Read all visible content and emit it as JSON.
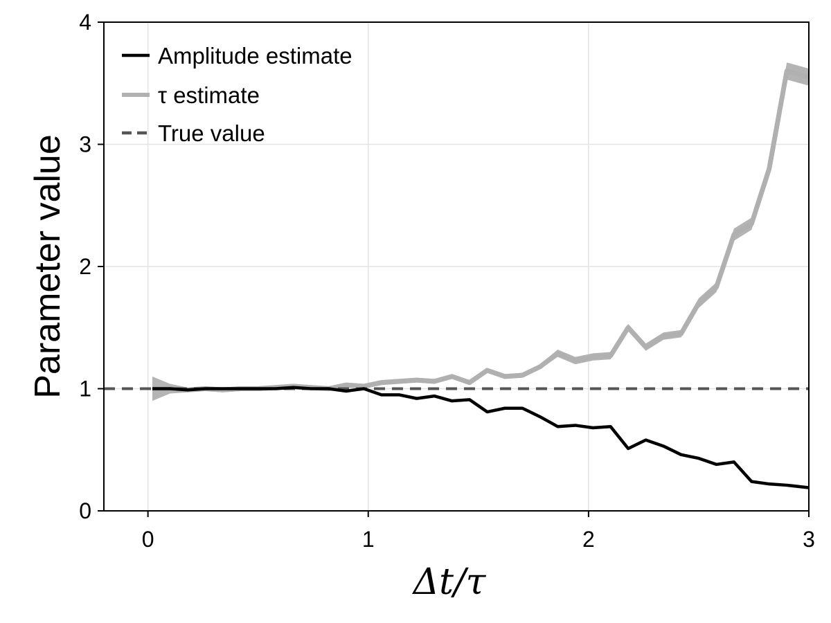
{
  "chart_data": {
    "type": "line",
    "title": "",
    "xlabel": "Δt/τ",
    "ylabel": "Parameter value",
    "xlim": [
      -0.2,
      3.0
    ],
    "ylim": [
      0,
      4
    ],
    "xticks": [
      0,
      1,
      2,
      3
    ],
    "yticks": [
      0,
      1,
      2,
      3,
      4
    ],
    "x_tick_labels": [
      "0",
      "1",
      "2",
      "3"
    ],
    "y_tick_labels": [
      "0",
      "1",
      "2",
      "3",
      "4"
    ],
    "grid": true,
    "legend_position": "top-left",
    "legend": [
      {
        "label": "Amplitude estimate",
        "style": "solid",
        "color": "#000000"
      },
      {
        "label": "τ estimate",
        "style": "solid",
        "color": "#b0b0b0"
      },
      {
        "label": "True value",
        "style": "dashed",
        "color": "#555555"
      }
    ],
    "x": [
      0.02,
      0.1,
      0.18,
      0.26,
      0.34,
      0.42,
      0.5,
      0.58,
      0.66,
      0.74,
      0.82,
      0.9,
      0.98,
      1.06,
      1.14,
      1.22,
      1.3,
      1.38,
      1.46,
      1.54,
      1.62,
      1.7,
      1.78,
      1.86,
      1.94,
      2.02,
      2.1,
      2.18,
      2.26,
      2.34,
      2.42,
      2.5,
      2.58,
      2.66,
      2.74,
      2.82,
      2.9,
      3.0
    ],
    "series": [
      {
        "name": "Amplitude estimate",
        "color": "#000000",
        "values": [
          1.0,
          1.0,
          0.99,
          1.0,
          1.0,
          1.0,
          1.0,
          1.0,
          1.01,
          1.0,
          1.0,
          0.98,
          1.0,
          0.95,
          0.95,
          0.92,
          0.94,
          0.9,
          0.91,
          0.81,
          0.84,
          0.84,
          0.77,
          0.69,
          0.7,
          0.68,
          0.69,
          0.51,
          0.58,
          0.53,
          0.46,
          0.43,
          0.38,
          0.4,
          0.24,
          0.22,
          0.21,
          0.19
        ]
      },
      {
        "name": "τ estimate",
        "color": "#b0b0b0",
        "values": [
          1.0,
          1.0,
          0.99,
          1.0,
          0.99,
          1.0,
          1.0,
          1.01,
          1.02,
          1.01,
          1.0,
          1.03,
          1.02,
          1.05,
          1.06,
          1.07,
          1.06,
          1.1,
          1.05,
          1.15,
          1.1,
          1.11,
          1.18,
          1.29,
          1.23,
          1.26,
          1.27,
          1.5,
          1.34,
          1.43,
          1.45,
          1.7,
          1.83,
          2.26,
          2.35,
          2.8,
          3.6,
          3.55
        ],
        "band_halfwidth": [
          0.1,
          0.04,
          0.02,
          0.02,
          0.02,
          0.02,
          0.02,
          0.02,
          0.02,
          0.02,
          0.02,
          0.02,
          0.02,
          0.02,
          0.02,
          0.02,
          0.02,
          0.02,
          0.02,
          0.02,
          0.02,
          0.02,
          0.02,
          0.03,
          0.03,
          0.03,
          0.03,
          0.03,
          0.03,
          0.03,
          0.03,
          0.04,
          0.04,
          0.05,
          0.05,
          0.06,
          0.07,
          0.07
        ]
      },
      {
        "name": "True value",
        "color": "#555555",
        "values_constant": 1.0
      }
    ]
  }
}
